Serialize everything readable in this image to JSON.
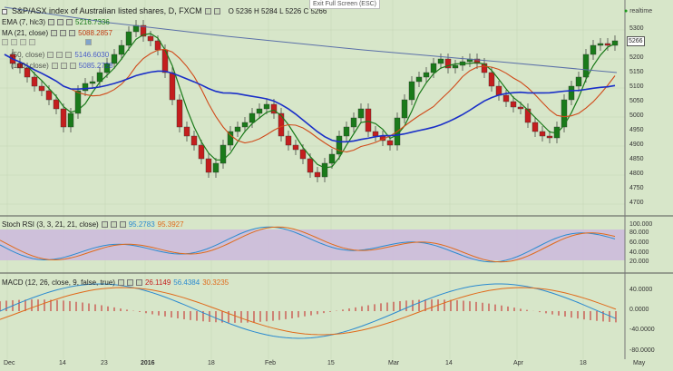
{
  "header": {
    "symbol_title": "S&P/ASX index of Australian listed shares, D, FXCM",
    "ohlc": "O 5236 H 5284 L 5226 C 5266",
    "exit_fullscreen": "Exit Full Screen (ESC)",
    "realtime": "realtime"
  },
  "indicators": {
    "ema": {
      "label": "EMA (7, hlc3)",
      "value": "5216.7336",
      "color": "#1a7a1a"
    },
    "ma": {
      "label": "MA (21, close)",
      "value": "5088.2857",
      "color": "#d04a1a"
    },
    "ma50": {
      "label": "(50, close)",
      "value": "5146.6030",
      "color": "#1a2fc8"
    },
    "ma100": {
      "label": "(100, close)",
      "value": "5085.2728",
      "color": "#5a6fa8"
    }
  },
  "stoch": {
    "label": "Stoch RSI (3, 3, 21, 21, close)",
    "k": "95.2783",
    "d": "95.3927",
    "k_color": "#2a8ad0",
    "d_color": "#e06a1a"
  },
  "macd": {
    "label": "MACD (12, 26, close, 9, false, true)",
    "hist": "26.1149",
    "macd": "56.4384",
    "signal": "30.3235"
  },
  "price_marker": "5266",
  "price_axis": [
    "5300",
    "5250",
    "5200",
    "5150",
    "5100",
    "5050",
    "5000",
    "4950",
    "4900",
    "4850",
    "4800",
    "4750",
    "4700"
  ],
  "stoch_axis": [
    "100.000",
    "80.000",
    "60.000",
    "40.000",
    "20.000"
  ],
  "macd_axis": [
    "40.0000",
    "0.0000",
    "-40.0000",
    "-80.0000"
  ],
  "time_axis": [
    "Dec",
    "14",
    "23",
    "2016",
    "18",
    "Feb",
    "15",
    "Mar",
    "14",
    "Apr",
    "18",
    "May"
  ],
  "colors": {
    "background": "#d7e6c9",
    "bull": "#1a7a1a",
    "bear": "#c41e1e",
    "stoch_band": "#cdb8dd"
  }
}
